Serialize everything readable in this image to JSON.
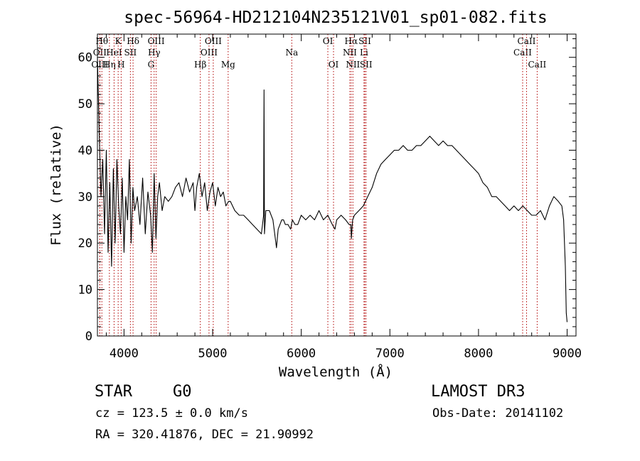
{
  "chart_data": {
    "type": "line",
    "title": "spec-56964-HD212104N235121V01_sp01-082.fits",
    "xlabel": "Wavelength (Å)",
    "ylabel": "Flux (relative)",
    "xlim": [
      3700,
      9100
    ],
    "ylim": [
      0,
      65
    ],
    "xticks": [
      4000,
      5000,
      6000,
      7000,
      8000,
      9000
    ],
    "yticks": [
      0,
      10,
      20,
      30,
      40,
      50,
      60
    ],
    "grid": false,
    "series": [
      {
        "name": "spectrum",
        "x": [
          3700,
          3720,
          3740,
          3760,
          3780,
          3800,
          3820,
          3840,
          3860,
          3880,
          3900,
          3920,
          3940,
          3960,
          3980,
          4000,
          4020,
          4040,
          4060,
          4080,
          4100,
          4120,
          4150,
          4180,
          4210,
          4240,
          4270,
          4300,
          4320,
          4340,
          4360,
          4380,
          4400,
          4430,
          4460,
          4500,
          4540,
          4580,
          4620,
          4660,
          4700,
          4740,
          4780,
          4800,
          4820,
          4850,
          4880,
          4910,
          4940,
          4970,
          5000,
          5030,
          5060,
          5090,
          5120,
          5150,
          5180,
          5200,
          5250,
          5300,
          5350,
          5400,
          5450,
          5500,
          5550,
          5575,
          5580,
          5585,
          5600,
          5640,
          5680,
          5700,
          5720,
          5740,
          5760,
          5780,
          5800,
          5820,
          5850,
          5880,
          5900,
          5930,
          5960,
          6000,
          6050,
          6100,
          6150,
          6200,
          6250,
          6300,
          6350,
          6380,
          6400,
          6450,
          6500,
          6540,
          6560,
          6565,
          6580,
          6600,
          6650,
          6700,
          6750,
          6800,
          6850,
          6900,
          6950,
          7000,
          7050,
          7100,
          7150,
          7200,
          7250,
          7300,
          7350,
          7400,
          7450,
          7500,
          7550,
          7600,
          7650,
          7700,
          7750,
          7800,
          7850,
          7900,
          7950,
          8000,
          8050,
          8100,
          8150,
          8200,
          8250,
          8300,
          8350,
          8400,
          8450,
          8500,
          8550,
          8600,
          8650,
          8700,
          8750,
          8800,
          8850,
          8900,
          8940,
          8960,
          8980,
          8990,
          9000
        ],
        "values": [
          60,
          44,
          30,
          38,
          22,
          40,
          18,
          33,
          15,
          36,
          20,
          38,
          28,
          22,
          34,
          18,
          30,
          25,
          38,
          20,
          32,
          27,
          30,
          24,
          34,
          22,
          31,
          26,
          18,
          35,
          21,
          30,
          33,
          27,
          30,
          29,
          30,
          32,
          33,
          30,
          34,
          31,
          33,
          27,
          32,
          35,
          30,
          33,
          27,
          31,
          33,
          28,
          32,
          30,
          31,
          28,
          29,
          29,
          27,
          26,
          26,
          25,
          24,
          23,
          22,
          26,
          53,
          22,
          27,
          27,
          25,
          22,
          19,
          23,
          24,
          25,
          25,
          24,
          24,
          23,
          25,
          24,
          24,
          26,
          25,
          26,
          25,
          27,
          25,
          26,
          24,
          23,
          25,
          26,
          25,
          24,
          24,
          21,
          25,
          26,
          27,
          28,
          30,
          32,
          35,
          37,
          38,
          39,
          40,
          40,
          41,
          40,
          40,
          41,
          41,
          42,
          43,
          42,
          41,
          42,
          41,
          41,
          40,
          39,
          38,
          37,
          36,
          35,
          33,
          32,
          30,
          30,
          29,
          28,
          27,
          28,
          27,
          28,
          27,
          26,
          26,
          27,
          25,
          28,
          30,
          29,
          28,
          25,
          15,
          5,
          3
        ]
      }
    ],
    "lines": [
      {
        "label": "OII",
        "wl": 3727,
        "row": 2
      },
      {
        "label": "OIII",
        "wl": 3727,
        "row": 3
      },
      {
        "label": "Hθ",
        "wl": 3750,
        "row": 1
      },
      {
        "label": "Hη",
        "wl": 3835,
        "row": 3
      },
      {
        "label": "HeI",
        "wl": 3888,
        "row": 2
      },
      {
        "label": "K",
        "wl": 3934,
        "row": 1
      },
      {
        "label": "H",
        "wl": 3968,
        "row": 3
      },
      {
        "label": "SII",
        "wl": 4072,
        "row": 2
      },
      {
        "label": "Hδ",
        "wl": 4102,
        "row": 1
      },
      {
        "label": "G",
        "wl": 4305,
        "row": 3
      },
      {
        "label": "Hγ",
        "wl": 4340,
        "row": 2
      },
      {
        "label": "OIII",
        "wl": 4363,
        "row": 1
      },
      {
        "label": "Hβ",
        "wl": 4861,
        "row": 3
      },
      {
        "label": "OIII",
        "wl": 4959,
        "row": 2
      },
      {
        "label": "OIII",
        "wl": 5007,
        "row": 1
      },
      {
        "label": "Mg",
        "wl": 5175,
        "row": 3
      },
      {
        "label": "Na",
        "wl": 5893,
        "row": 2
      },
      {
        "label": "OI",
        "wl": 6300,
        "row": 1
      },
      {
        "label": "OI",
        "wl": 6364,
        "row": 3
      },
      {
        "label": "NII",
        "wl": 6548,
        "row": 2
      },
      {
        "label": "Hα",
        "wl": 6563,
        "row": 1
      },
      {
        "label": "NII",
        "wl": 6583,
        "row": 3
      },
      {
        "label": "Li",
        "wl": 6708,
        "row": 2
      },
      {
        "label": "SII",
        "wl": 6717,
        "row": 1
      },
      {
        "label": "SII",
        "wl": 6731,
        "row": 3
      },
      {
        "label": "CaII",
        "wl": 8498,
        "row": 2
      },
      {
        "label": "CaII",
        "wl": 8542,
        "row": 1
      },
      {
        "label": "CaII",
        "wl": 8662,
        "row": 3
      }
    ]
  },
  "info": {
    "object_class": "STAR",
    "subclass": "G0",
    "survey": "LAMOST DR3",
    "cz": "cz = 123.5 ± 0.0 km/s",
    "obs_date": "Obs-Date: 20141102",
    "coords": "RA = 320.41876, DEC =  21.90992"
  },
  "colors": {
    "line_marker": "#b00000",
    "spectrum": "#000000"
  }
}
